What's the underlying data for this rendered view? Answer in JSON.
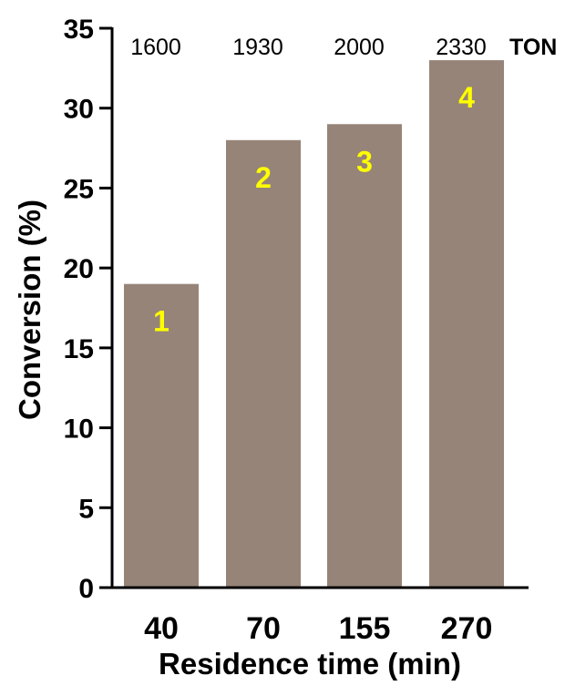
{
  "chart_data": {
    "type": "bar",
    "categories": [
      "40",
      "70",
      "155",
      "270"
    ],
    "values": [
      19,
      28,
      29,
      33
    ],
    "bar_labels": [
      "1",
      "2",
      "3",
      "4"
    ],
    "ton_values": [
      "1600",
      "1930",
      "2000",
      "2330"
    ],
    "ton_label": "TON",
    "xlabel": "Residence time (min)",
    "ylabel": "Conversion (%)",
    "ylim": [
      0,
      35
    ],
    "yticks": [
      0,
      5,
      10,
      15,
      20,
      25,
      30,
      35
    ],
    "grid": false,
    "legend": "none",
    "colors": {
      "bar": "#968478",
      "bar_label": "#ffff00",
      "axis": "#000000"
    }
  }
}
